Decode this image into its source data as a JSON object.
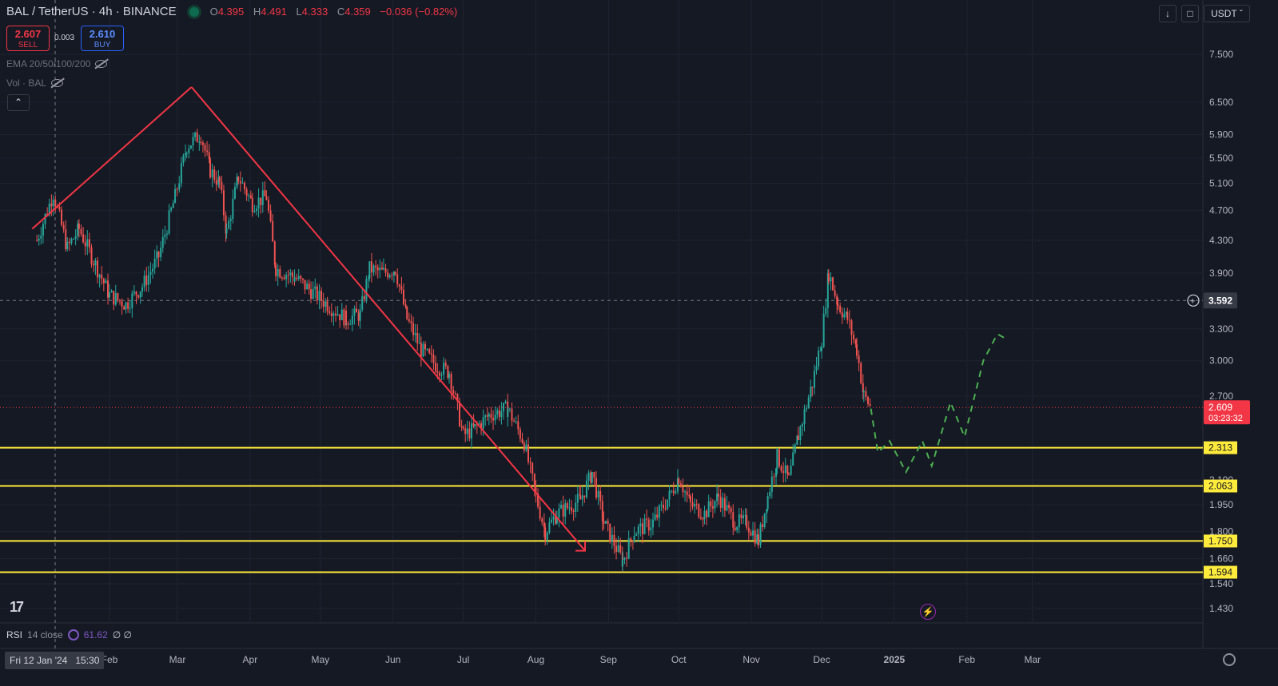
{
  "header": {
    "symbol": "BAL / TetherUS · 4h · BINANCE",
    "o_label": "O",
    "o": "4.395",
    "h_label": "H",
    "h": "4.491",
    "l_label": "L",
    "l": "4.333",
    "c_label": "C",
    "c": "4.359",
    "change": "−0.036 (−0.82%)"
  },
  "trade": {
    "sell_price": "2.607",
    "sell_label": "SELL",
    "spread": "0.003",
    "buy_price": "2.610",
    "buy_label": "BUY"
  },
  "indicators": {
    "ema": "EMA 20/50/100/200",
    "vol": "Vol · BAL",
    "rsi_name": "RSI",
    "rsi_params": "14 close",
    "rsi_value": "61.62",
    "rsi_extra": "∅ ∅"
  },
  "toolbar": {
    "currency": "USDT",
    "collapse_icon": "chevron-up-icon"
  },
  "crosshair": {
    "date": "Fri 12 Jan '24",
    "time": "15:30",
    "price_line": "3.592"
  },
  "colors": {
    "up": "#26a69a",
    "down": "#ef5350",
    "support": "#ffeb3b",
    "trend": "#f23645",
    "projection": "#4caf50",
    "background": "#151924"
  },
  "chart_data": {
    "type": "candlestick",
    "scale": "log",
    "ylim": [
      1.38,
      8.3
    ],
    "y_ticks": [
      "7.500",
      "6.500",
      "5.900",
      "5.500",
      "5.100",
      "4.700",
      "4.300",
      "3.900",
      "3.300",
      "3.000",
      "2.700",
      "2.100",
      "1.950",
      "1.800",
      "1.660",
      "1.540",
      "1.430"
    ],
    "x_ticks": [
      "Feb",
      "Mar",
      "Apr",
      "May",
      "Jun",
      "Jul",
      "Aug",
      "Sep",
      "Oct",
      "Nov",
      "Dec",
      "2025",
      "Feb",
      "Mar"
    ],
    "last_price": {
      "value": "2.609",
      "countdown": "03:23:32"
    },
    "support_levels": [
      "2.313",
      "2.063",
      "1.750",
      "1.594"
    ],
    "price_path": [
      {
        "date": "2024-01-01",
        "price": 4.3
      },
      {
        "date": "2024-01-08",
        "price": 4.95
      },
      {
        "date": "2024-01-14",
        "price": 4.2
      },
      {
        "date": "2024-01-19",
        "price": 4.45
      },
      {
        "date": "2024-01-26",
        "price": 4.0
      },
      {
        "date": "2024-02-01",
        "price": 3.65
      },
      {
        "date": "2024-02-08",
        "price": 3.55
      },
      {
        "date": "2024-02-15",
        "price": 3.75
      },
      {
        "date": "2024-02-22",
        "price": 4.1
      },
      {
        "date": "2024-02-29",
        "price": 4.9
      },
      {
        "date": "2024-03-05",
        "price": 5.7
      },
      {
        "date": "2024-03-11",
        "price": 5.9
      },
      {
        "date": "2024-03-15",
        "price": 5.3
      },
      {
        "date": "2024-03-19",
        "price": 5.1
      },
      {
        "date": "2024-03-22",
        "price": 4.4
      },
      {
        "date": "2024-03-27",
        "price": 5.2
      },
      {
        "date": "2024-04-02",
        "price": 4.8
      },
      {
        "date": "2024-04-08",
        "price": 4.9
      },
      {
        "date": "2024-04-12",
        "price": 3.95
      },
      {
        "date": "2024-04-20",
        "price": 3.85
      },
      {
        "date": "2024-04-27",
        "price": 3.7
      },
      {
        "date": "2024-05-04",
        "price": 3.55
      },
      {
        "date": "2024-05-12",
        "price": 3.4
      },
      {
        "date": "2024-05-18",
        "price": 3.45
      },
      {
        "date": "2024-05-22",
        "price": 3.95
      },
      {
        "date": "2024-05-28",
        "price": 3.9
      },
      {
        "date": "2024-06-02",
        "price": 3.95
      },
      {
        "date": "2024-06-07",
        "price": 3.4
      },
      {
        "date": "2024-06-13",
        "price": 3.1
      },
      {
        "date": "2024-06-20",
        "price": 2.95
      },
      {
        "date": "2024-06-25",
        "price": 2.9
      },
      {
        "date": "2024-07-01",
        "price": 2.4
      },
      {
        "date": "2024-07-06",
        "price": 2.45
      },
      {
        "date": "2024-07-12",
        "price": 2.55
      },
      {
        "date": "2024-07-20",
        "price": 2.6
      },
      {
        "date": "2024-07-27",
        "price": 2.35
      },
      {
        "date": "2024-08-01",
        "price": 2.0
      },
      {
        "date": "2024-08-05",
        "price": 1.8
      },
      {
        "date": "2024-08-10",
        "price": 1.9
      },
      {
        "date": "2024-08-20",
        "price": 1.98
      },
      {
        "date": "2024-08-25",
        "price": 2.15
      },
      {
        "date": "2024-08-30",
        "price": 1.85
      },
      {
        "date": "2024-09-07",
        "price": 1.65
      },
      {
        "date": "2024-09-12",
        "price": 1.8
      },
      {
        "date": "2024-09-20",
        "price": 1.85
      },
      {
        "date": "2024-09-27",
        "price": 2.0
      },
      {
        "date": "2024-10-01",
        "price": 2.12
      },
      {
        "date": "2024-10-06",
        "price": 1.95
      },
      {
        "date": "2024-10-12",
        "price": 1.9
      },
      {
        "date": "2024-10-18",
        "price": 2.0
      },
      {
        "date": "2024-10-25",
        "price": 1.85
      },
      {
        "date": "2024-10-30",
        "price": 1.85
      },
      {
        "date": "2024-11-04",
        "price": 1.75
      },
      {
        "date": "2024-11-08",
        "price": 2.0
      },
      {
        "date": "2024-11-12",
        "price": 2.25
      },
      {
        "date": "2024-11-17",
        "price": 2.1
      },
      {
        "date": "2024-11-21",
        "price": 2.4
      },
      {
        "date": "2024-11-27",
        "price": 2.8
      },
      {
        "date": "2024-12-01",
        "price": 3.2
      },
      {
        "date": "2024-12-04",
        "price": 3.9
      },
      {
        "date": "2024-12-08",
        "price": 3.55
      },
      {
        "date": "2024-12-12",
        "price": 3.4
      },
      {
        "date": "2024-12-16",
        "price": 3.1
      },
      {
        "date": "2024-12-19",
        "price": 2.7
      },
      {
        "date": "2024-12-22",
        "price": 2.61
      }
    ],
    "trend_lines": [
      {
        "from": {
          "date": "2023-12-30",
          "price": 4.45
        },
        "to": {
          "date": "2024-03-07",
          "price": 6.8
        }
      },
      {
        "from": {
          "date": "2024-03-07",
          "price": 6.8
        },
        "to": {
          "date": "2024-08-22",
          "price": 1.7
        }
      }
    ],
    "projection_path": [
      {
        "date": "2024-12-22",
        "price": 2.6
      },
      {
        "date": "2024-12-25",
        "price": 2.28
      },
      {
        "date": "2024-12-30",
        "price": 2.36
      },
      {
        "date": "2025-01-06",
        "price": 2.15
      },
      {
        "date": "2025-01-13",
        "price": 2.36
      },
      {
        "date": "2025-01-17",
        "price": 2.19
      },
      {
        "date": "2025-01-25",
        "price": 2.65
      },
      {
        "date": "2025-01-31",
        "price": 2.39
      },
      {
        "date": "2025-02-08",
        "price": 3.0
      },
      {
        "date": "2025-02-14",
        "price": 3.25
      },
      {
        "date": "2025-02-18",
        "price": 3.2
      }
    ]
  }
}
